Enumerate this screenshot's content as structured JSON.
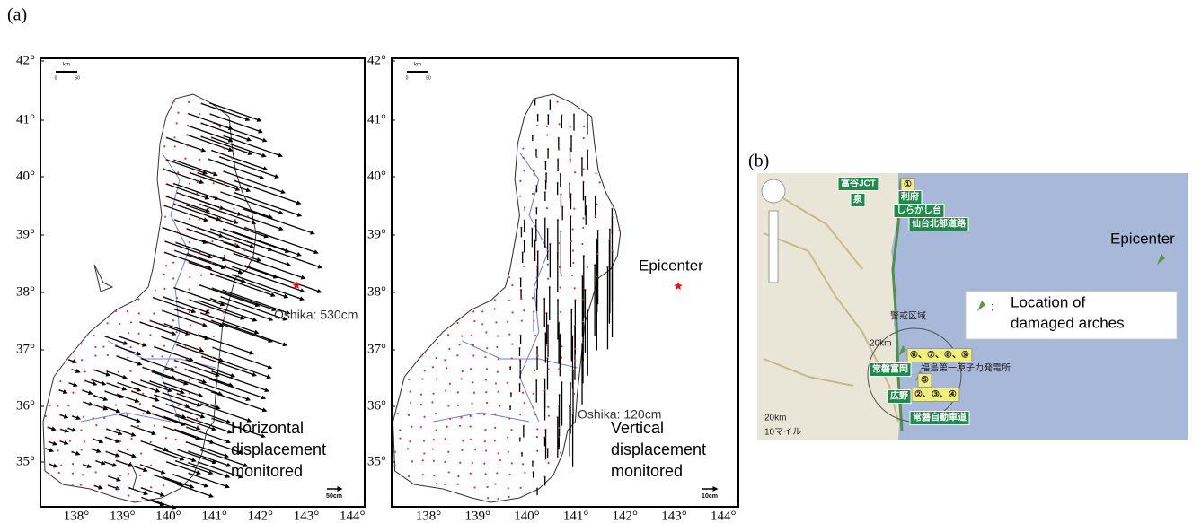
{
  "panel_a": {
    "label": "(a)",
    "maps": [
      {
        "lat_ticks": [
          "42°",
          "41°",
          "40°",
          "39°",
          "38°",
          "37°",
          "36°",
          "35°"
        ],
        "lon_ticks": [
          "138°",
          "139°",
          "140°",
          "141°",
          "142°",
          "143°",
          "144°"
        ],
        "scale_unit": "km",
        "scale_ticks": [
          "0",
          "50"
        ],
        "vector_scale": "50cm",
        "annotation": "Oshika: 530cm",
        "caption": [
          "Horizontal",
          "displacement",
          "monitored"
        ]
      },
      {
        "lat_ticks": [
          "42°",
          "41°",
          "40°",
          "39°",
          "38°",
          "37°",
          "36°",
          "35°"
        ],
        "lon_ticks": [
          "138°",
          "139°",
          "140°",
          "141°",
          "142°",
          "143°",
          "144°"
        ],
        "scale_unit": "km",
        "scale_ticks": [
          "0",
          "50"
        ],
        "vector_scale": "10cm",
        "epicenter": "Epicenter",
        "annotation": "Oshika: 120cm",
        "caption": [
          "Vertical",
          "displacement",
          "monitored"
        ]
      }
    ]
  },
  "panel_b": {
    "label": "(b)",
    "epicenter": "Epicenter",
    "legend": {
      "marker": ":",
      "text": [
        "Location of",
        "damaged arches"
      ]
    },
    "map_labels": [
      "富谷JCT",
      "①",
      "泉",
      "利府",
      "しらかし台",
      "仙台北部道路",
      "警戒区域",
      "20km",
      "⑥、⑦、⑧、⑨",
      "常磐富岡",
      "福島第一原子力発電所",
      "⑤",
      "広野",
      "②、③、④",
      "常磐自動車道",
      "20km",
      "10マイル"
    ]
  }
}
